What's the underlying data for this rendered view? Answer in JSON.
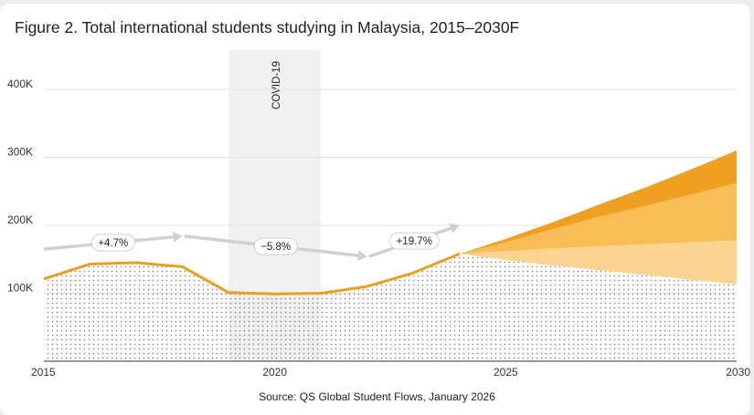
{
  "chart_data": {
    "type": "area",
    "title": "Figure 2. Total international students studying in Malaysia, 2015–2030F",
    "source": "Source: QS Global Student Flows, January 2026",
    "x_ticks": [
      "2015",
      "2020",
      "2025",
      "2030"
    ],
    "y_ticks": [
      "100K",
      "200K",
      "300K",
      "400K"
    ],
    "ylim": [
      0,
      400000
    ],
    "xlim": [
      2015,
      2030
    ],
    "grid": true,
    "historical": {
      "x": [
        2015,
        2016,
        2017,
        2018,
        2019,
        2020,
        2021,
        2022,
        2023,
        2024
      ],
      "values": [
        121000,
        143000,
        145000,
        139000,
        101000,
        99000,
        100000,
        110000,
        130000,
        158000
      ]
    },
    "forecast": {
      "x": [
        2024,
        2025,
        2026,
        2027,
        2028,
        2029,
        2030
      ],
      "low": [
        158000,
        149000,
        141000,
        134000,
        127000,
        120000,
        113000
      ],
      "mid_low": [
        158000,
        162000,
        166000,
        169000,
        172000,
        175000,
        178000
      ],
      "mid_high": [
        158000,
        175000,
        194000,
        212000,
        228000,
        245000,
        262000
      ],
      "high": [
        158000,
        180000,
        204000,
        230000,
        255000,
        282000,
        310000
      ]
    },
    "highlight_band": {
      "label": "COVID-19",
      "x_start": 2019,
      "x_end": 2021
    },
    "growth_arrows": [
      {
        "label": "+4.7%",
        "from": [
          2015,
          165000
        ],
        "to": [
          2018,
          184000
        ]
      },
      {
        "label": "−5.8%",
        "from": [
          2018,
          184000
        ],
        "to": [
          2022,
          154000
        ]
      },
      {
        "label": "+19.7%",
        "from": [
          2022,
          154000
        ],
        "to": [
          2024,
          200000
        ]
      }
    ],
    "colors": {
      "line": "#e8a020",
      "forecast_high": "#f0a020",
      "forecast_mid": "#f6be55",
      "forecast_low": "#fad490",
      "dots": "#8a8a8a",
      "covid_band": "#f0f0f0",
      "arrow": "#d0d0d0"
    }
  }
}
